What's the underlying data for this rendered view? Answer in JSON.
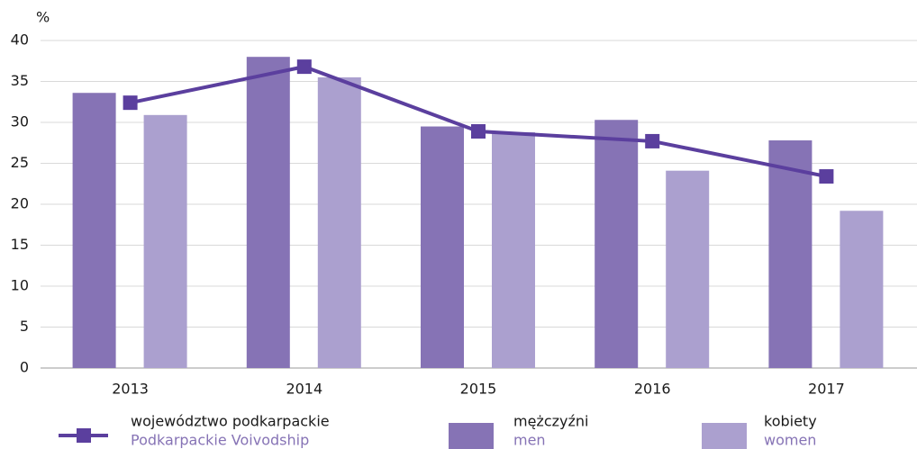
{
  "chart_data": {
    "type": "bar_line",
    "ylabel": "%",
    "categories": [
      "2013",
      "2014",
      "2015",
      "2016",
      "2017"
    ],
    "series": [
      {
        "name": "województwo podkarpackie",
        "name_en": "Podkarpackie Voivodship",
        "kind": "line",
        "color": "#5b3f9e",
        "values": [
          32.4,
          36.8,
          28.9,
          27.7,
          23.4
        ]
      },
      {
        "name": "mężczyźni",
        "name_en": "men",
        "kind": "bar",
        "color": "#8673b5",
        "values": [
          33.6,
          38.0,
          29.5,
          30.3,
          27.8
        ]
      },
      {
        "name": "kobiety",
        "name_en": "women",
        "kind": "bar",
        "color": "#aba0cf",
        "values": [
          30.9,
          35.5,
          28.8,
          24.1,
          19.2
        ]
      }
    ],
    "ylim": [
      0,
      40
    ],
    "yticks": [
      0,
      5,
      10,
      15,
      20,
      25,
      30,
      35,
      40
    ],
    "grid": true
  }
}
